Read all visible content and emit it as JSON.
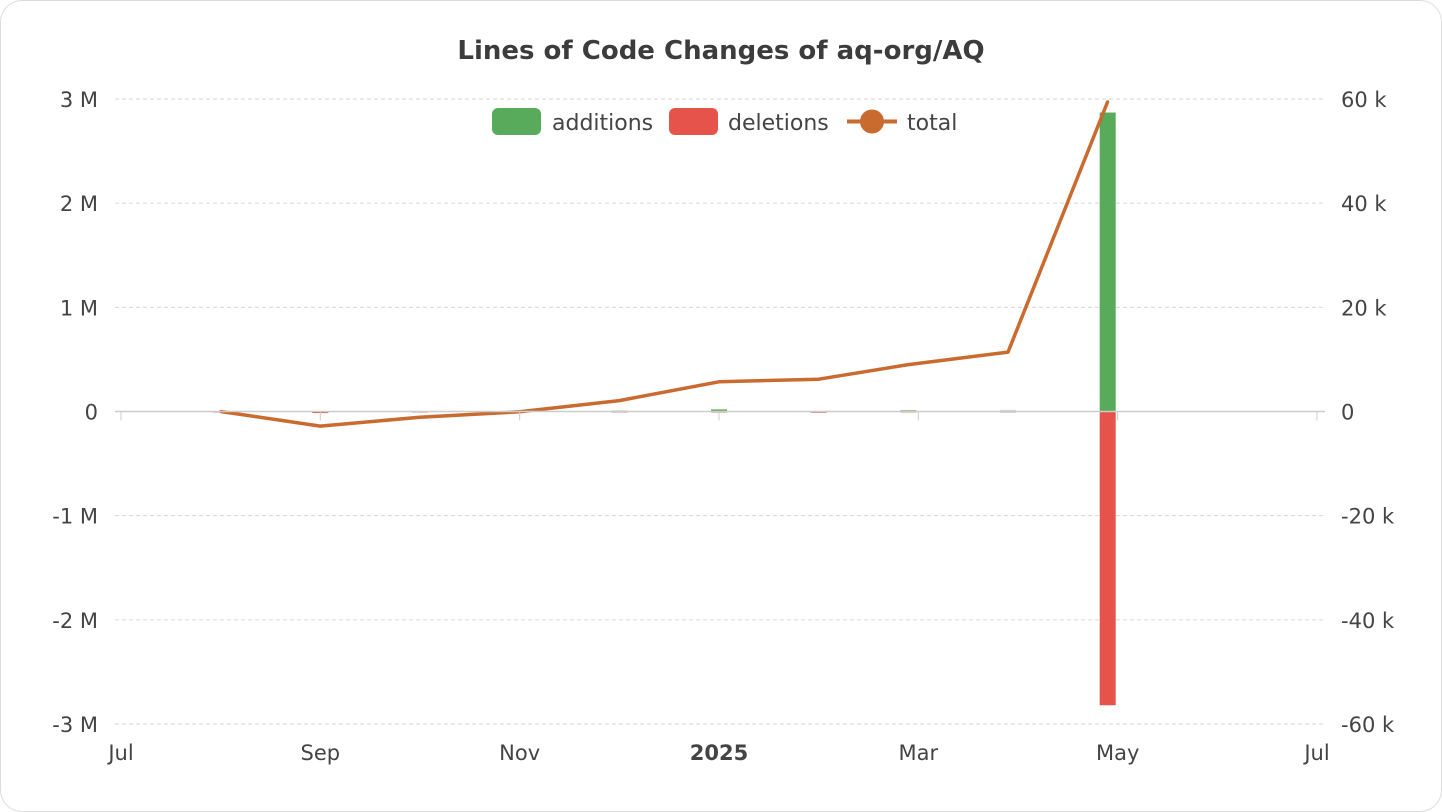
{
  "chart_data": {
    "type": "bar+line",
    "title": "Lines of Code Changes of aq-org/AQ",
    "colors": {
      "additions": "#57ab5a",
      "deletions": "#e5534b",
      "total": "#c96a2f"
    },
    "x_ticks": [
      {
        "label": "Jul",
        "month": 0,
        "bold": false
      },
      {
        "label": "Sep",
        "month": 2,
        "bold": false
      },
      {
        "label": "Nov",
        "month": 4,
        "bold": false
      },
      {
        "label": "2025",
        "month": 6,
        "bold": true
      },
      {
        "label": "Mar",
        "month": 8,
        "bold": false
      },
      {
        "label": "May",
        "month": 10,
        "bold": false
      },
      {
        "label": "Jul",
        "month": 12,
        "bold": false
      }
    ],
    "y_left": {
      "ylim": [
        -3000000,
        3000000
      ],
      "ticks": [
        3000000,
        2000000,
        1000000,
        0,
        -1000000,
        -2000000,
        -3000000
      ],
      "tick_labels": [
        "3 M",
        "2 M",
        "1 M",
        "0",
        "-1 M",
        "-2 M",
        "-3 M"
      ]
    },
    "y_right": {
      "ylim": [
        -60000,
        60000
      ],
      "ticks": [
        60000,
        40000,
        20000,
        0,
        -20000,
        -40000,
        -60000
      ],
      "tick_labels": [
        "60 k",
        "40 k",
        "20 k",
        "0",
        "-20 k",
        "-40 k",
        "-60 k"
      ]
    },
    "legend": [
      {
        "key": "additions",
        "label": "additions"
      },
      {
        "key": "deletions",
        "label": "deletions"
      },
      {
        "key": "total",
        "label": "total"
      }
    ],
    "series": [
      {
        "name": "additions",
        "axis": "left",
        "kind": "bar",
        "points": [
          {
            "month": 1.0,
            "value": 0
          },
          {
            "month": 2.0,
            "value": 2000
          },
          {
            "month": 3.0,
            "value": 3000
          },
          {
            "month": 4.0,
            "value": 2000
          },
          {
            "month": 5.0,
            "value": 8000
          },
          {
            "month": 6.0,
            "value": 20000
          },
          {
            "month": 7.0,
            "value": 4000
          },
          {
            "month": 7.9,
            "value": 12000
          },
          {
            "month": 8.9,
            "value": 10000
          },
          {
            "month": 9.9,
            "value": 2870000
          }
        ]
      },
      {
        "name": "deletions",
        "axis": "left",
        "kind": "bar",
        "points": [
          {
            "month": 1.0,
            "value": 0
          },
          {
            "month": 2.0,
            "value": -15000
          },
          {
            "month": 3.0,
            "value": -3000
          },
          {
            "month": 4.0,
            "value": -2000
          },
          {
            "month": 5.0,
            "value": -4000
          },
          {
            "month": 6.0,
            "value": -10000
          },
          {
            "month": 7.0,
            "value": -12000
          },
          {
            "month": 7.9,
            "value": -4000
          },
          {
            "month": 8.9,
            "value": -8000
          },
          {
            "month": 9.9,
            "value": -2820000
          }
        ]
      },
      {
        "name": "total",
        "axis": "right",
        "kind": "line",
        "points": [
          {
            "month": 1.0,
            "value": 0
          },
          {
            "month": 2.0,
            "value": -2800
          },
          {
            "month": 3.0,
            "value": -1100
          },
          {
            "month": 4.0,
            "value": -50
          },
          {
            "month": 5.0,
            "value": 2100
          },
          {
            "month": 6.0,
            "value": 5700
          },
          {
            "month": 7.0,
            "value": 6200
          },
          {
            "month": 7.9,
            "value": 9000
          },
          {
            "month": 8.9,
            "value": 11400
          },
          {
            "month": 9.9,
            "value": 59500
          }
        ]
      }
    ]
  }
}
